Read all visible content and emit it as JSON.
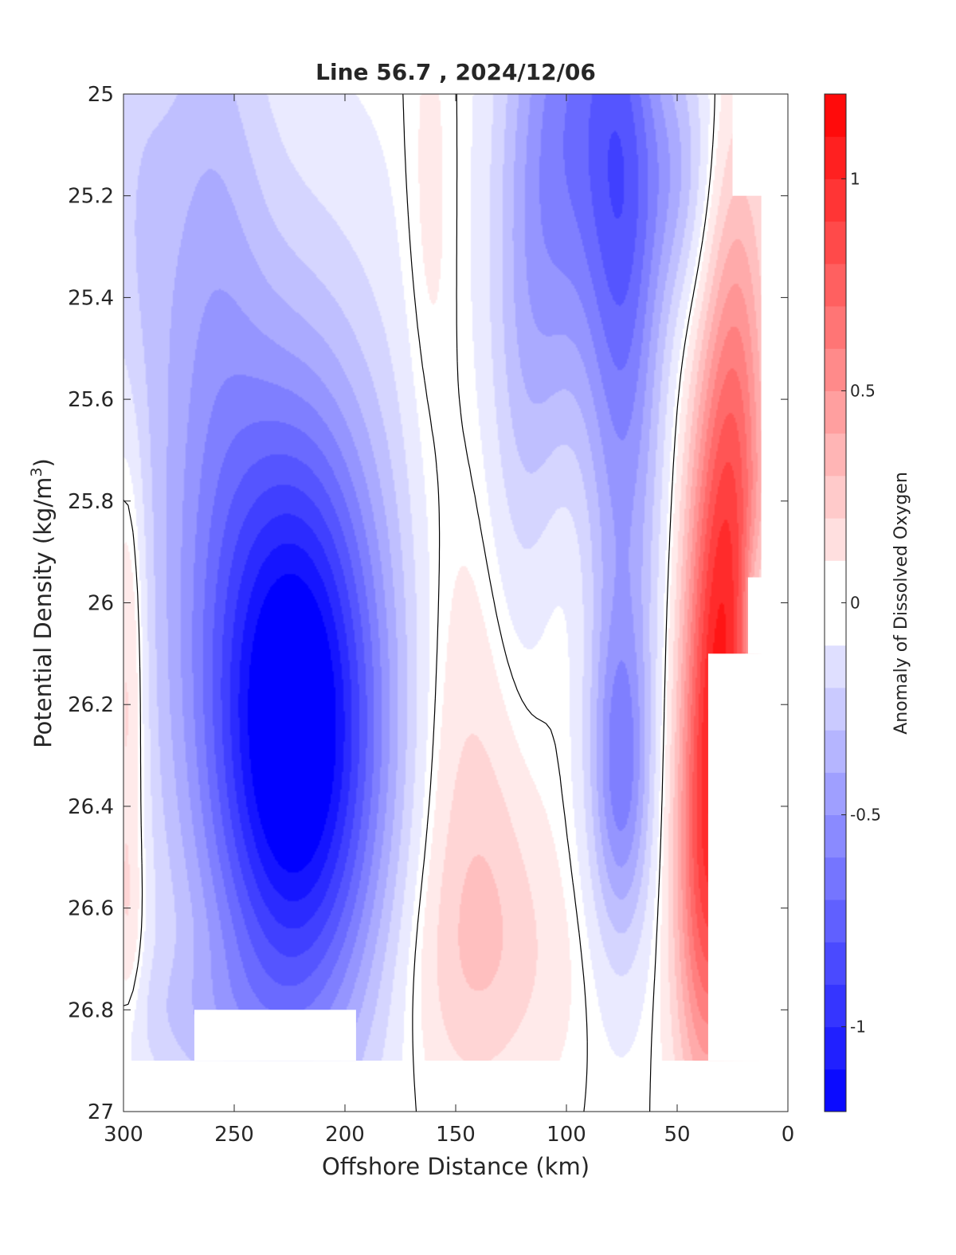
{
  "chart_data": {
    "type": "heatmap",
    "title": "Line 56.7 , 2024/12/06",
    "xlabel": "Offshore Distance (km)",
    "ylabel_main": "Potential Density (kg/m",
    "ylabel_sup": "3",
    "ylabel_close": ")",
    "colorbar_label": "Anomaly of Dissolved Oxygen",
    "xlim": [
      300,
      0
    ],
    "x_reversed": true,
    "ylim": [
      25,
      27
    ],
    "y_reversed": true,
    "x_ticks": [
      {
        "value": 300,
        "label": "300"
      },
      {
        "value": 250,
        "label": "250"
      },
      {
        "value": 200,
        "label": "200"
      },
      {
        "value": 150,
        "label": "150"
      },
      {
        "value": 100,
        "label": "100"
      },
      {
        "value": 50,
        "label": "50"
      },
      {
        "value": 0,
        "label": "0"
      }
    ],
    "y_ticks": [
      {
        "value": 25,
        "label": "25"
      },
      {
        "value": 25.2,
        "label": "25.2"
      },
      {
        "value": 25.4,
        "label": "25.4"
      },
      {
        "value": 25.6,
        "label": "25.6"
      },
      {
        "value": 25.8,
        "label": "25.8"
      },
      {
        "value": 26,
        "label": "26"
      },
      {
        "value": 26.2,
        "label": "26.2"
      },
      {
        "value": 26.4,
        "label": "26.4"
      },
      {
        "value": 26.6,
        "label": "26.6"
      },
      {
        "value": 26.8,
        "label": "26.8"
      },
      {
        "value": 27,
        "label": "27"
      }
    ],
    "colorbar_range": [
      -1.2,
      1.2
    ],
    "colorbar_step": 0.1,
    "colorbar_ticks": [
      {
        "value": 1,
        "label": "1"
      },
      {
        "value": 0.5,
        "label": "0.5"
      },
      {
        "value": 0,
        "label": "0"
      },
      {
        "value": -0.5,
        "label": "-0.5"
      },
      {
        "value": -1,
        "label": "-1"
      }
    ],
    "colormap": {
      "negative": "#0000ff",
      "zero": "#ffffff",
      "positive": "#ff0000"
    },
    "grid": false,
    "zero_contour": true,
    "features": [
      {
        "x": 222,
        "y": 26.28,
        "amplitude": -1.18,
        "sx": 28,
        "sy": 0.42
      },
      {
        "x": 238,
        "y": 25.95,
        "amplitude": -0.3,
        "sx": 45,
        "sy": 0.55
      },
      {
        "x": 262,
        "y": 25.25,
        "amplitude": -0.25,
        "sx": 18,
        "sy": 0.5
      },
      {
        "x": 295,
        "y": 25.2,
        "amplitude": -0.15,
        "sx": 12,
        "sy": 0.35
      },
      {
        "x": 270,
        "y": 26.82,
        "amplitude": -0.14,
        "sx": 28,
        "sy": 0.1
      },
      {
        "x": 298,
        "y": 26.15,
        "amplitude": 0.3,
        "sx": 6,
        "sy": 0.35
      },
      {
        "x": 298,
        "y": 26.65,
        "amplitude": 0.12,
        "sx": 5,
        "sy": 0.15
      },
      {
        "x": 148,
        "y": 26.32,
        "amplitude": 0.18,
        "sx": 18,
        "sy": 0.45
      },
      {
        "x": 135,
        "y": 26.72,
        "amplitude": 0.15,
        "sx": 30,
        "sy": 0.18
      },
      {
        "x": 162,
        "y": 25.25,
        "amplitude": 0.1,
        "sx": 8,
        "sy": 0.35
      },
      {
        "x": 103,
        "y": 25.95,
        "amplitude": 0.09,
        "sx": 14,
        "sy": 0.25
      },
      {
        "x": 130,
        "y": 26.48,
        "amplitude": 0.08,
        "sx": 18,
        "sy": 0.2
      },
      {
        "x": 98,
        "y": 25.05,
        "amplitude": -0.55,
        "sx": 18,
        "sy": 0.4
      },
      {
        "x": 75,
        "y": 25.1,
        "amplitude": -0.42,
        "sx": 12,
        "sy": 0.4
      },
      {
        "x": 118,
        "y": 25.55,
        "amplitude": -0.25,
        "sx": 13,
        "sy": 0.45
      },
      {
        "x": 70,
        "y": 25.6,
        "amplitude": -0.25,
        "sx": 12,
        "sy": 0.5
      },
      {
        "x": 75,
        "y": 26.35,
        "amplitude": -0.42,
        "sx": 9,
        "sy": 0.22
      },
      {
        "x": 80,
        "y": 26.1,
        "amplitude": -0.18,
        "sx": 12,
        "sy": 0.45
      },
      {
        "x": 50,
        "y": 25.15,
        "amplitude": -0.3,
        "sx": 12,
        "sy": 0.2
      },
      {
        "x": 32,
        "y": 26.15,
        "amplitude": 0.85,
        "sx": 11,
        "sy": 0.42
      },
      {
        "x": 38,
        "y": 26.6,
        "amplitude": 0.45,
        "sx": 10,
        "sy": 0.3
      },
      {
        "x": 22,
        "y": 25.65,
        "amplitude": 0.45,
        "sx": 10,
        "sy": 0.4
      },
      {
        "x": 15,
        "y": 26.0,
        "amplitude": -0.2,
        "sx": 4,
        "sy": 0.1
      }
    ],
    "no_data_regions": [
      {
        "x_from": 300,
        "x_to": 0,
        "y_from": 26.9,
        "y_to": 27.0
      },
      {
        "x_from": 268,
        "x_to": 195,
        "y_from": 26.8,
        "y_to": 26.9
      },
      {
        "x_from": 36,
        "x_to": 0,
        "y_from": 26.1,
        "y_to": 26.9
      },
      {
        "x_from": 12,
        "x_to": 0,
        "y_from": 25.0,
        "y_to": 27.0
      },
      {
        "x_from": 25,
        "x_to": 0,
        "y_from": 25.0,
        "y_to": 25.2
      },
      {
        "x_from": 18,
        "x_to": 0,
        "y_from": 25.95,
        "y_to": 26.1
      }
    ]
  }
}
